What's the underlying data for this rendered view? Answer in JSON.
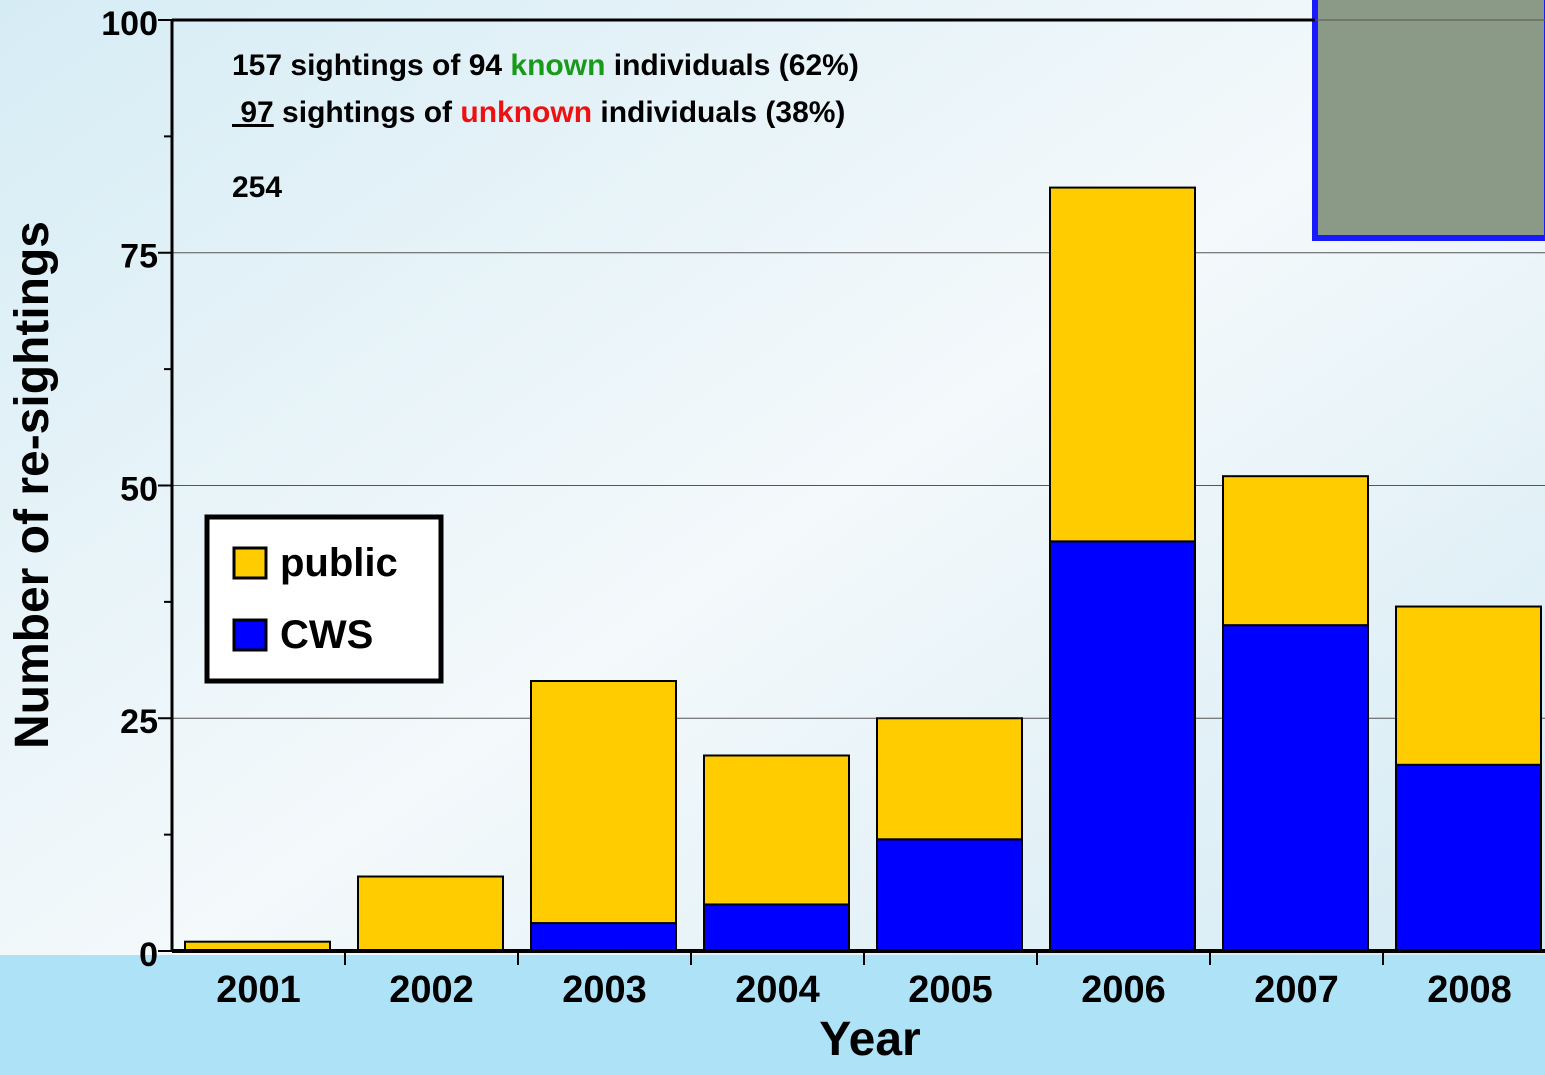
{
  "chart_data": {
    "type": "stacked_bar",
    "x_label": "Year",
    "y_label": "Number of re-sightings",
    "categories": [
      "2001",
      "2002",
      "2003",
      "2004",
      "2005",
      "2006",
      "2007",
      "2008"
    ],
    "series": [
      {
        "name": "CWS",
        "color": "#0000ff",
        "values": [
          0,
          0,
          3,
          5,
          12,
          44,
          35,
          20
        ]
      },
      {
        "name": "public",
        "color": "#ffcc00",
        "values": [
          1,
          8,
          26,
          16,
          13,
          38,
          16,
          17
        ]
      }
    ],
    "ylim": [
      0,
      100
    ],
    "yticks": [
      0,
      25,
      50,
      75,
      100
    ],
    "minor_yticks": [
      12.5,
      37.5,
      62.5,
      87.5
    ],
    "grid": true,
    "legend": "left",
    "annotations": [
      [
        {
          "text": "157 sightings of 94 "
        },
        {
          "text": "known",
          "color": "#1a9a1a"
        },
        {
          "text": " individuals (62%)"
        }
      ],
      [
        {
          "text": " 97",
          "underline": true
        },
        {
          "text": " sightings of "
        },
        {
          "text": "unknown",
          "color": "#ee1111"
        },
        {
          "text": " individuals (38%)"
        }
      ],
      [
        {
          "text": "254"
        }
      ]
    ]
  }
}
